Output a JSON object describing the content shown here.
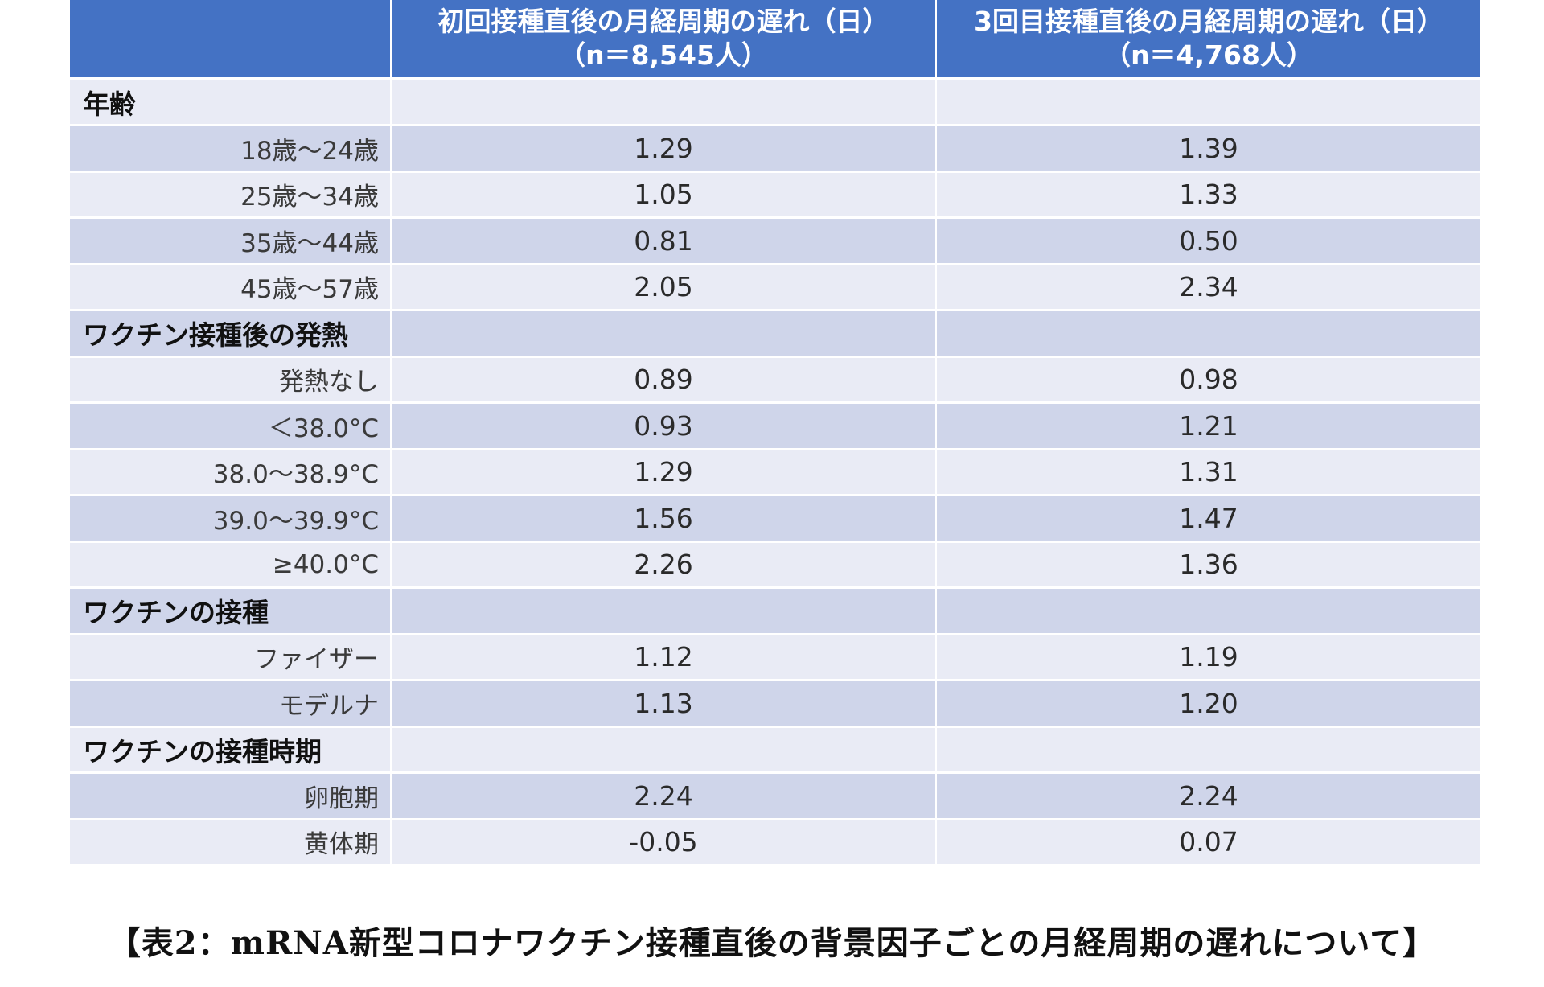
{
  "table": {
    "headers": [
      "",
      "初回接種直後の月経周期の遅れ（日）\n（n＝8,545人）",
      "3回目接種直後の月経周期の遅れ（日）\n（n＝4,768人）"
    ],
    "header_lines": {
      "col1_line1": "初回接種直後の月経周期の遅れ（日）",
      "col1_line2": "（n＝8,545人）",
      "col2_line1": "3回目接種直後の月経周期の遅れ（日）",
      "col2_line2": "（n＝4,768人）"
    },
    "groups": [
      {
        "label": "年齢",
        "rows": [
          {
            "label": "18歳〜24歳",
            "first": "1.29",
            "third": "1.39"
          },
          {
            "label": "25歳〜34歳",
            "first": "1.05",
            "third": "1.33"
          },
          {
            "label": "35歳〜44歳",
            "first": "0.81",
            "third": "0.50"
          },
          {
            "label": "45歳〜57歳",
            "first": "2.05",
            "third": "2.34"
          }
        ]
      },
      {
        "label": "ワクチン接種後の発熱",
        "rows": [
          {
            "label": "発熱なし",
            "first": "0.89",
            "third": "0.98"
          },
          {
            "label": "＜38.0°C",
            "first": "0.93",
            "third": "1.21"
          },
          {
            "label": "38.0〜38.9°C",
            "first": "1.29",
            "third": "1.31"
          },
          {
            "label": "39.0〜39.9°C",
            "first": "1.56",
            "third": "1.47"
          },
          {
            "label": "≥40.0°C",
            "first": "2.26",
            "third": "1.36"
          }
        ]
      },
      {
        "label": "ワクチンの接種",
        "rows": [
          {
            "label": "ファイザー",
            "first": "1.12",
            "third": "1.19"
          },
          {
            "label": "モデルナ",
            "first": "1.13",
            "third": "1.20"
          }
        ]
      },
      {
        "label": "ワクチンの接種時期",
        "rows": [
          {
            "label": "卵胞期",
            "first": "2.24",
            "third": "2.24"
          },
          {
            "label": "黄体期",
            "first": "-0.05",
            "third": "0.07"
          }
        ]
      }
    ]
  },
  "caption": "【表2：mRNA新型コロナワクチン接種直後の背景因子ごとの月経周期の遅れについて】",
  "colors": {
    "header_bg": "#4472c4",
    "row_dark": "#cfd5ea",
    "row_light": "#e9ebf5"
  }
}
